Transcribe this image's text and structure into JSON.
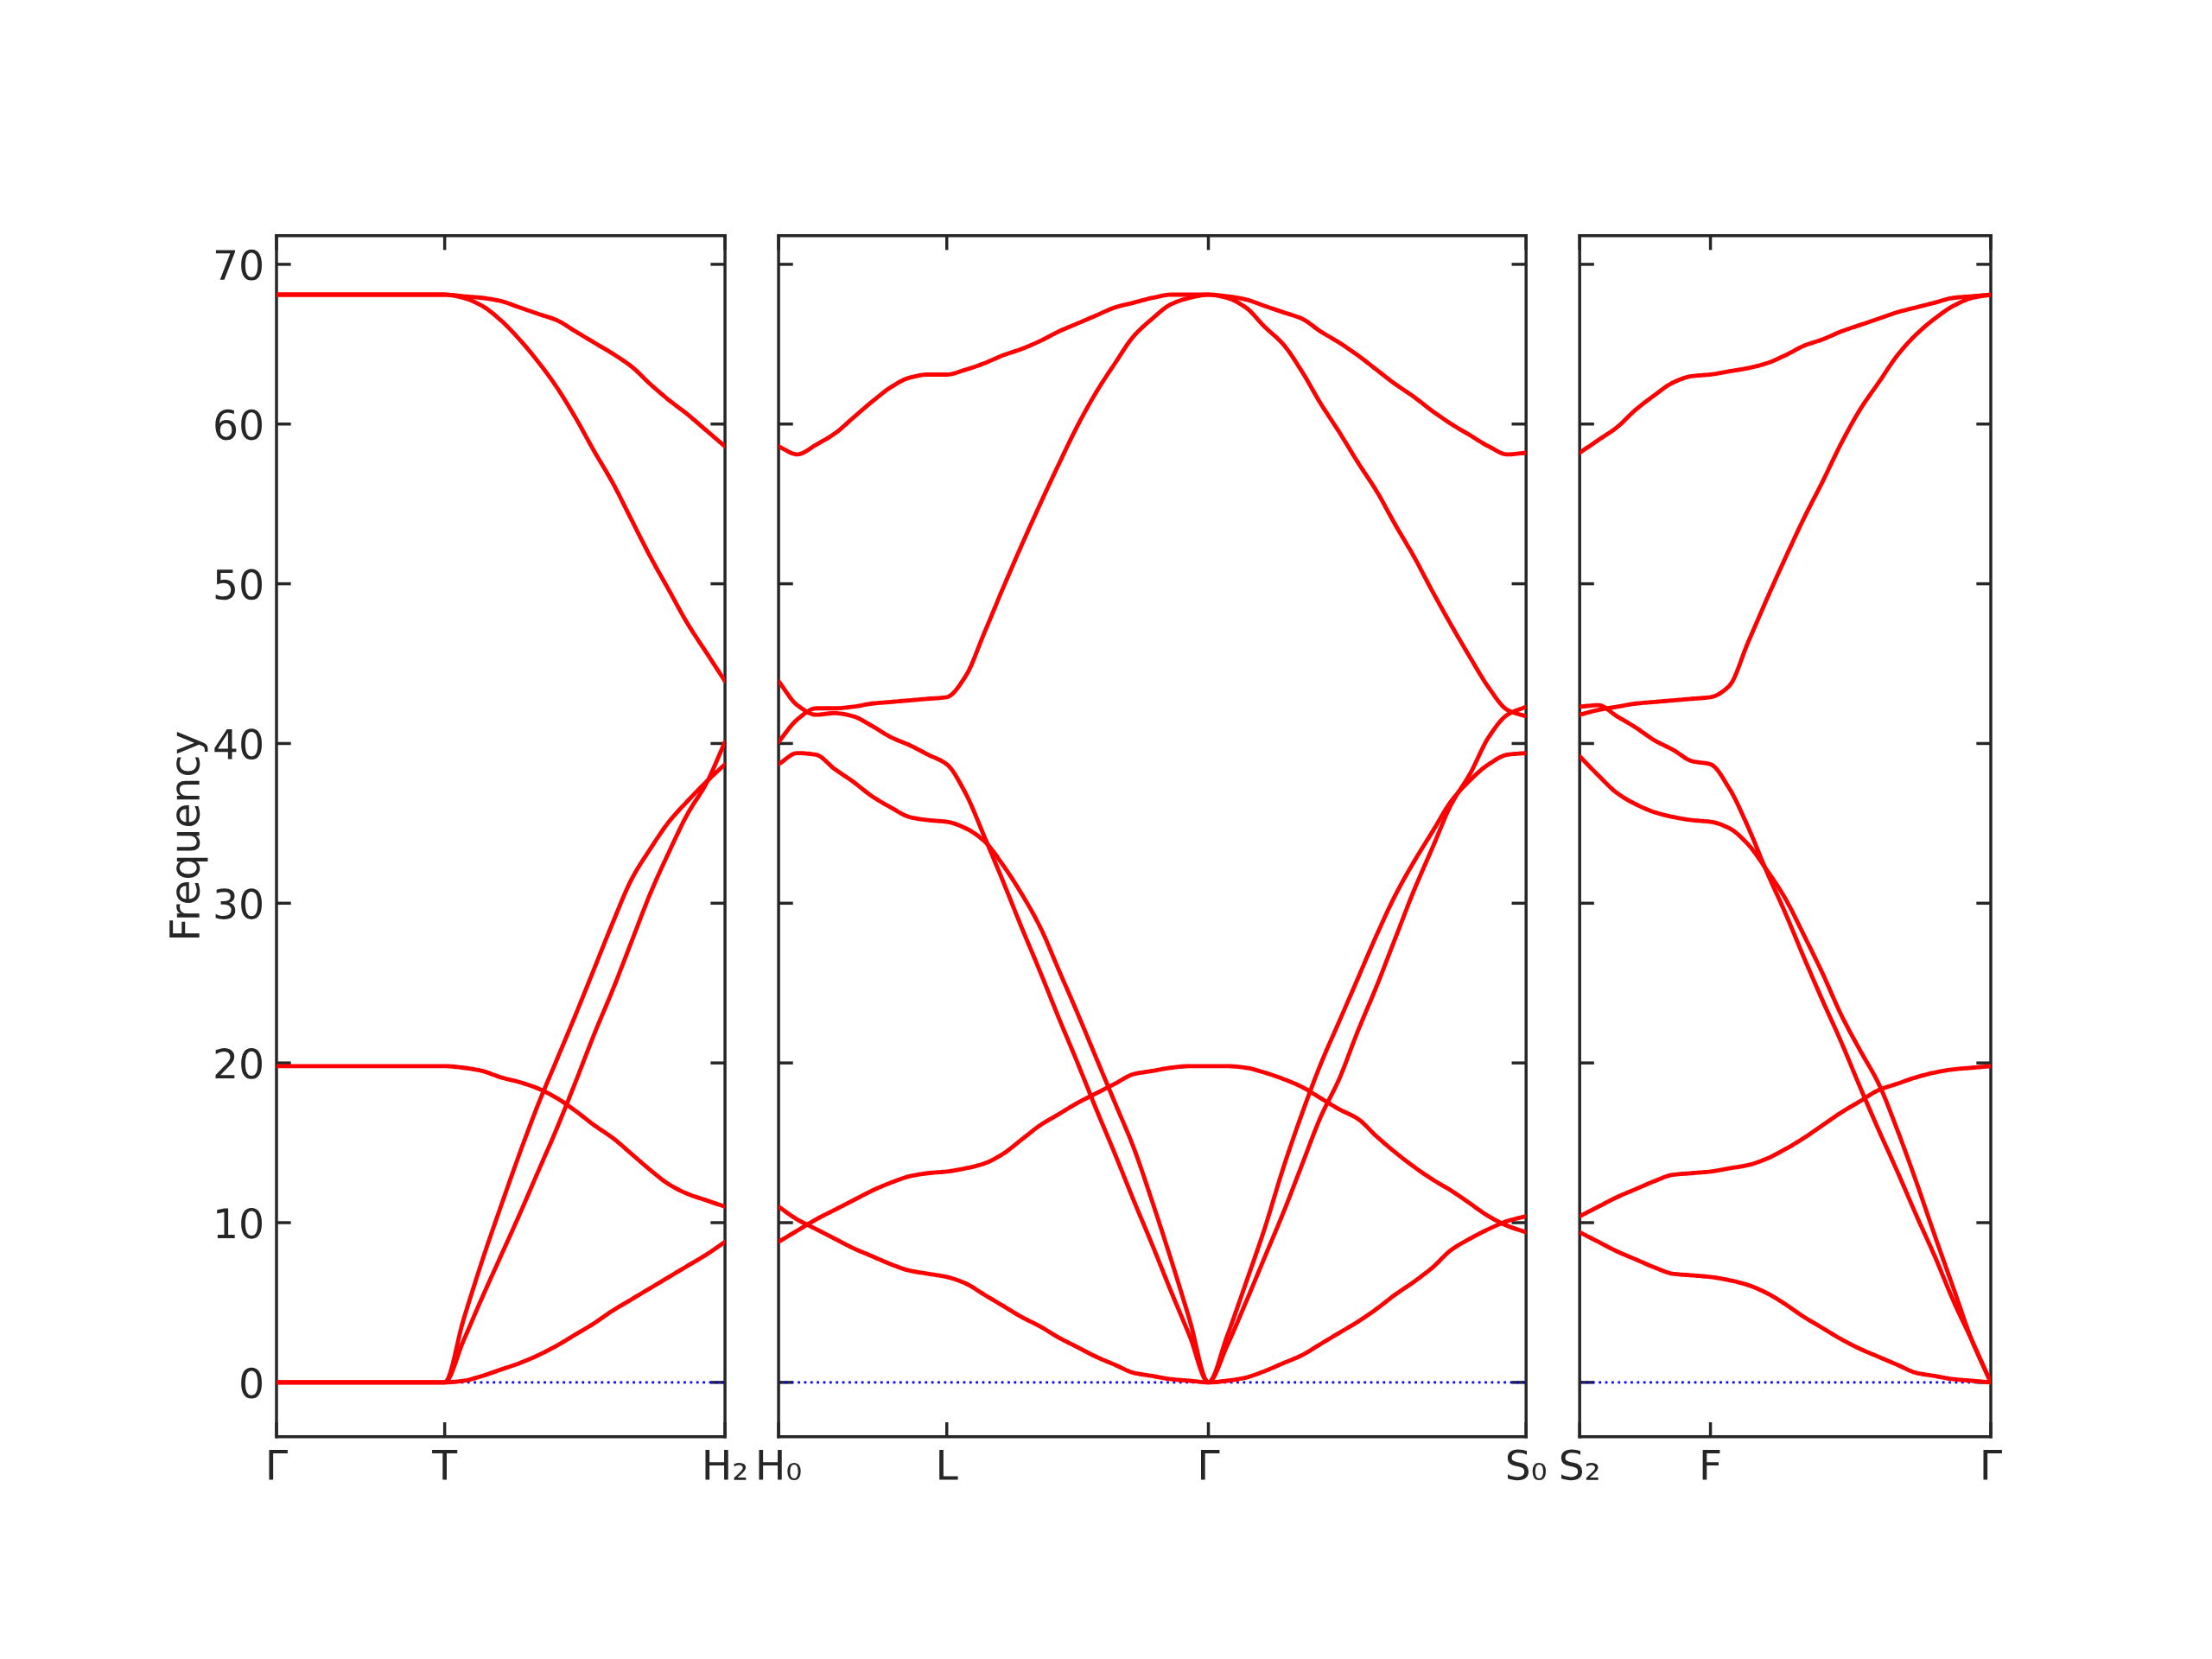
{
  "chart_data": [
    {
      "type": "line",
      "ylabel": "Frequency",
      "ylim": [
        -3.4,
        71.8
      ],
      "categories": [
        "Γ",
        null,
        null,
        null,
        null,
        null,
        null,
        null,
        null,
        "T",
        null,
        null,
        null,
        null,
        null,
        null,
        null,
        null,
        null,
        null,
        null,
        null,
        null,
        null,
        "H₂"
      ],
      "yticks": [
        0,
        10,
        20,
        30,
        40,
        50,
        60,
        70
      ],
      "marker": "none",
      "line_style": "solid",
      "ref_lines": [
        {
          "axis": "y",
          "value": 0,
          "color": "#0000ff",
          "line_style": "dotted"
        }
      ],
      "series": [
        {
          "color": "#ff0000",
          "values": [
            68.1,
            68.1,
            68.1,
            68.1,
            68.1,
            68.1,
            68.1,
            68.1,
            68.1,
            68.1,
            68.0,
            67.9,
            67.7,
            67.3,
            66.9,
            66.5,
            65.8,
            65.1,
            64.4,
            63.6,
            62.5,
            61.5,
            60.6,
            59.6,
            58.6
          ]
        },
        {
          "color": "#ff0000",
          "values": [
            68.1,
            68.1,
            68.1,
            68.1,
            68.1,
            68.1,
            68.1,
            68.1,
            68.1,
            68.1,
            67.9,
            67.4,
            66.5,
            65.3,
            63.9,
            62.3,
            60.4,
            58.3,
            56.3,
            54.0,
            51.7,
            49.6,
            47.5,
            45.7,
            43.9
          ]
        },
        {
          "color": "#ff0000",
          "values": [
            19.8,
            19.8,
            19.8,
            19.8,
            19.8,
            19.8,
            19.8,
            19.8,
            19.8,
            19.8,
            19.7,
            19.5,
            19.1,
            18.8,
            18.4,
            17.8,
            17.0,
            16.1,
            15.3,
            14.3,
            13.3,
            12.4,
            11.8,
            11.4,
            11.0
          ]
        },
        {
          "color": "#ff0000",
          "values": [
            0,
            0,
            0,
            0,
            0,
            0,
            0,
            0,
            0,
            0,
            0.1,
            0.4,
            0.8,
            1.2,
            1.7,
            2.3,
            3.0,
            3.7,
            4.5,
            5.2,
            5.9,
            6.6,
            7.3,
            8.0,
            8.8
          ]
        },
        {
          "color": "#ff0000",
          "values": [
            0,
            0,
            0,
            0,
            0,
            0,
            0,
            0,
            0,
            0,
            3.9,
            7.6,
            11.0,
            14.3,
            17.4,
            20.2,
            23.0,
            25.9,
            28.8,
            31.5,
            33.4,
            35.1,
            36.4,
            37.6,
            38.7
          ]
        },
        {
          "color": "#ff0000",
          "values": [
            0,
            0,
            0,
            0,
            0,
            0,
            0,
            0,
            0,
            0,
            2.6,
            5.3,
            7.9,
            10.5,
            13.2,
            15.9,
            18.8,
            21.8,
            24.6,
            27.6,
            30.6,
            33.2,
            35.6,
            37.5,
            40.1
          ]
        }
      ]
    },
    {
      "type": "line",
      "ylim": [
        -3.4,
        71.8
      ],
      "tick_labels": "x",
      "categories": [
        "H₀",
        null,
        null,
        null,
        null,
        null,
        null,
        null,
        null,
        "L",
        null,
        null,
        null,
        null,
        null,
        null,
        null,
        null,
        null,
        null,
        null,
        null,
        null,
        "Γ",
        null,
        null,
        null,
        null,
        null,
        null,
        null,
        null,
        null,
        null,
        null,
        null,
        null,
        null,
        null,
        null,
        "S₀"
      ],
      "yticks": [
        0,
        10,
        20,
        30,
        40,
        50,
        60,
        70
      ],
      "marker": "none",
      "line_style": "solid",
      "ref_lines": [
        {
          "axis": "y",
          "value": 0,
          "color": "#0000ff",
          "line_style": "dotted"
        }
      ],
      "series": [
        {
          "color": "#ff0000",
          "values": [
            58.6,
            58.1,
            58.7,
            59.4,
            60.4,
            61.4,
            62.3,
            62.9,
            63.1,
            63.1,
            63.4,
            63.8,
            64.3,
            64.7,
            65.2,
            65.8,
            66.3,
            66.8,
            67.3,
            67.6,
            67.9,
            68.1,
            68.1,
            68.1,
            68.0,
            67.8,
            67.4,
            67.0,
            66.6,
            65.8,
            65.1,
            64.3,
            63.4,
            62.5,
            61.7,
            60.8,
            60.0,
            59.3,
            58.6,
            58.1,
            58.2
          ]
        },
        {
          "color": "#ff0000",
          "values": [
            40.1,
            41.5,
            42.2,
            42.2,
            42.3,
            42.5,
            42.6,
            42.7,
            42.8,
            42.9,
            44.2,
            46.9,
            49.7,
            52.4,
            55.0,
            57.5,
            59.9,
            62.0,
            63.8,
            65.5,
            66.6,
            67.5,
            67.9,
            68.1,
            67.9,
            67.3,
            66.1,
            65.0,
            63.3,
            61.3,
            59.5,
            57.6,
            55.8,
            53.7,
            51.7,
            49.5,
            47.4,
            45.4,
            43.5,
            42.1,
            41.7
          ]
        },
        {
          "color": "#ff0000",
          "values": [
            43.9,
            42.4,
            41.8,
            41.9,
            41.7,
            41.1,
            40.4,
            39.9,
            39.3,
            38.7,
            36.9,
            34.2,
            31.4,
            28.5,
            25.7,
            22.8,
            20.0,
            17.1,
            14.3,
            11.4,
            8.6,
            5.7,
            2.9,
            0,
            2.3,
            5.0,
            7.8,
            10.6,
            13.6,
            16.6,
            19.0,
            22.0,
            24.8,
            27.8,
            30.8,
            33.5,
            36.2,
            38.1,
            40.4,
            41.8,
            42.3
          ]
        },
        {
          "color": "#ff0000",
          "values": [
            38.7,
            39.4,
            39.3,
            38.4,
            37.6,
            36.7,
            36.0,
            35.4,
            35.2,
            35.1,
            34.7,
            33.9,
            32.4,
            30.6,
            28.5,
            25.8,
            23.1,
            20.3,
            17.5,
            14.7,
            11.3,
            7.7,
            3.9,
            0,
            2.9,
            6.2,
            9.6,
            13.4,
            16.8,
            19.9,
            22.6,
            25.3,
            28.0,
            30.5,
            32.6,
            34.5,
            36.4,
            37.7,
            38.7,
            39.3,
            39.4
          ]
        },
        {
          "color": "#ff0000",
          "values": [
            8.8,
            9.5,
            10.2,
            10.8,
            11.4,
            12.0,
            12.5,
            12.9,
            13.1,
            13.2,
            13.4,
            13.7,
            14.3,
            15.2,
            16.1,
            16.8,
            17.5,
            18.1,
            18.7,
            19.3,
            19.5,
            19.7,
            19.8,
            19.8,
            19.8,
            19.7,
            19.4,
            19.0,
            18.5,
            17.8,
            17.1,
            16.5,
            15.4,
            14.4,
            13.5,
            12.7,
            12.0,
            11.2,
            10.4,
            9.8,
            9.4
          ]
        },
        {
          "color": "#ff0000",
          "values": [
            11.0,
            10.2,
            9.6,
            9.0,
            8.4,
            7.9,
            7.4,
            7.0,
            6.8,
            6.6,
            6.2,
            5.5,
            4.8,
            4.1,
            3.5,
            2.8,
            2.2,
            1.6,
            1.1,
            0.6,
            0.4,
            0.2,
            0.1,
            0,
            0.1,
            0.3,
            0.7,
            1.2,
            1.7,
            2.4,
            3.1,
            3.8,
            4.6,
            5.5,
            6.3,
            7.2,
            8.3,
            9.0,
            9.6,
            10.1,
            10.4
          ]
        }
      ]
    },
    {
      "type": "line",
      "ylim": [
        -3.4,
        71.8
      ],
      "tick_labels": "x",
      "categories": [
        "S₂",
        null,
        null,
        null,
        null,
        null,
        null,
        "F",
        null,
        null,
        null,
        null,
        null,
        null,
        null,
        null,
        null,
        null,
        null,
        null,
        null,
        null,
        "Γ"
      ],
      "yticks": [
        0,
        10,
        20,
        30,
        40,
        50,
        60,
        70
      ],
      "marker": "none",
      "line_style": "solid",
      "ref_lines": [
        {
          "axis": "y",
          "value": 0,
          "color": "#0000ff",
          "line_style": "dotted"
        }
      ],
      "series": [
        {
          "color": "#ff0000",
          "values": [
            58.2,
            59.0,
            59.8,
            60.9,
            61.8,
            62.6,
            63.0,
            63.1,
            63.3,
            63.5,
            63.8,
            64.3,
            64.9,
            65.3,
            65.8,
            66.2,
            66.6,
            67.0,
            67.3,
            67.6,
            67.9,
            68.0,
            68.1
          ]
        },
        {
          "color": "#ff0000",
          "values": [
            41.8,
            42.1,
            42.3,
            42.5,
            42.6,
            42.7,
            42.8,
            42.9,
            43.6,
            46.3,
            49.0,
            51.6,
            54.1,
            56.4,
            58.8,
            60.9,
            62.6,
            64.3,
            65.6,
            66.6,
            67.4,
            67.9,
            68.1
          ]
        },
        {
          "color": "#ff0000",
          "values": [
            42.3,
            42.4,
            41.7,
            41.0,
            40.2,
            39.6,
            38.9,
            38.7,
            37.2,
            34.8,
            32.0,
            29.4,
            26.6,
            23.9,
            21.3,
            18.5,
            15.8,
            13.2,
            10.5,
            7.9,
            5.1,
            2.6,
            0
          ]
        },
        {
          "color": "#ff0000",
          "values": [
            39.2,
            38.0,
            36.9,
            36.2,
            35.7,
            35.4,
            35.2,
            35.1,
            34.7,
            33.7,
            32.1,
            30.3,
            28.0,
            25.6,
            23.0,
            20.8,
            18.7,
            15.8,
            12.6,
            9.2,
            5.9,
            2.6,
            0
          ]
        },
        {
          "color": "#ff0000",
          "values": [
            10.4,
            11.0,
            11.6,
            12.1,
            12.6,
            13.0,
            13.1,
            13.2,
            13.4,
            13.6,
            14.0,
            14.6,
            15.3,
            16.1,
            16.9,
            17.6,
            18.3,
            18.7,
            19.1,
            19.4,
            19.6,
            19.7,
            19.8
          ]
        },
        {
          "color": "#ff0000",
          "values": [
            9.4,
            8.8,
            8.2,
            7.7,
            7.2,
            6.8,
            6.7,
            6.6,
            6.4,
            6.1,
            5.6,
            4.9,
            4.1,
            3.4,
            2.7,
            2.1,
            1.6,
            1.1,
            0.6,
            0.4,
            0.2,
            0.1,
            0
          ]
        }
      ]
    }
  ]
}
